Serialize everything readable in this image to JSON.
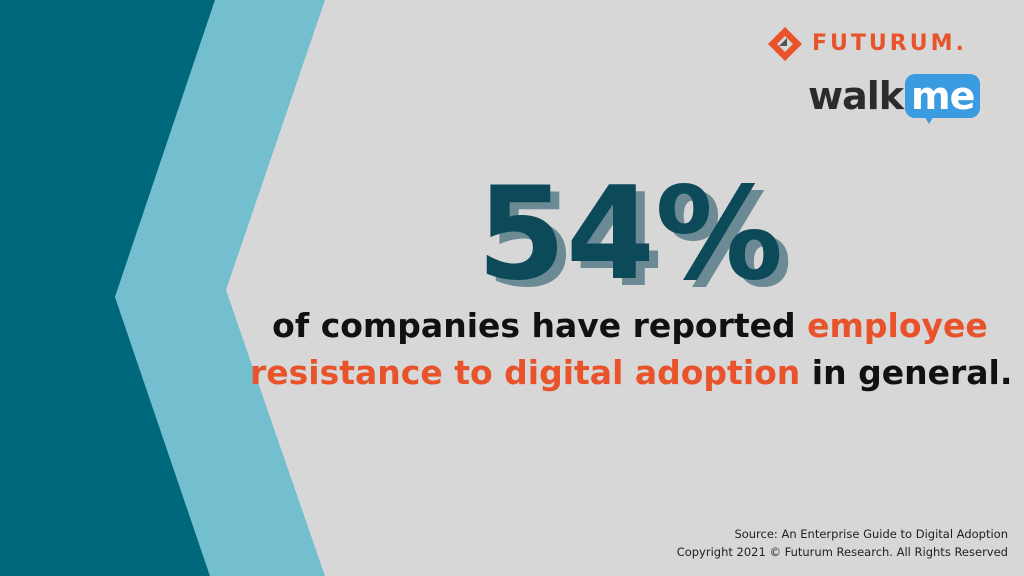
{
  "logos": {
    "futurum": "FUTURUM.",
    "walkme": {
      "walk": "walk",
      "me": "me"
    }
  },
  "stat": "54%",
  "statement": {
    "line1": [
      {
        "text": "of companies have reported ",
        "highlight": false
      },
      {
        "text": "employee",
        "highlight": true
      }
    ],
    "line2": [
      {
        "text": "resistance to digital adoption",
        "highlight": true
      },
      {
        "text": " in general.",
        "highlight": false
      }
    ]
  },
  "source": {
    "line1": "Source: An Enterprise Guide to Digital Adoption",
    "line2": "Copyright 2021 © Futurum Research. All Rights Reserved"
  }
}
